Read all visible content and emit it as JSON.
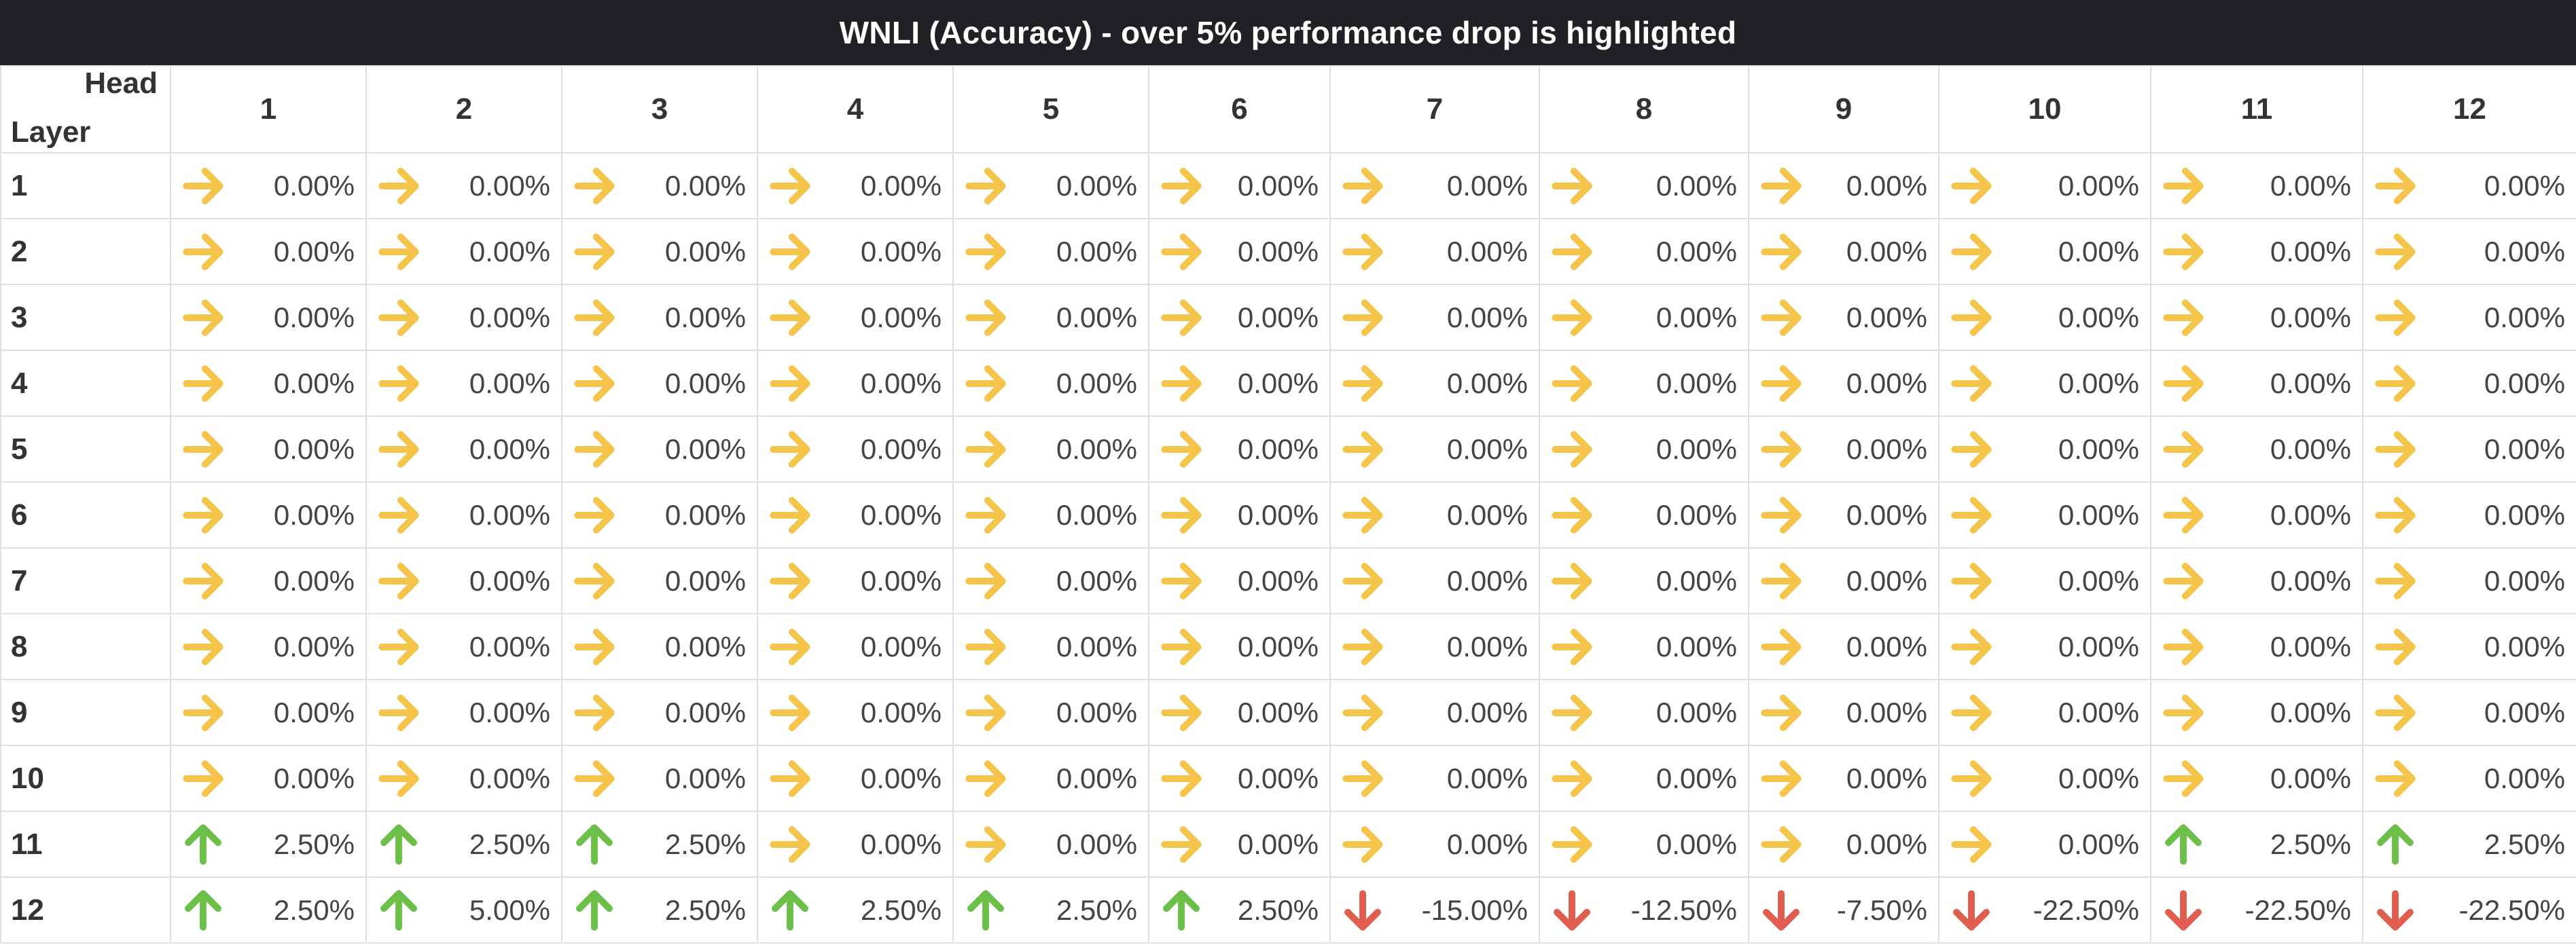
{
  "title": "WNLI (Accuracy) - over 5% performance drop is highlighted",
  "corner": {
    "head_label": "Head",
    "layer_label": "Layer"
  },
  "heads": [
    "1",
    "2",
    "3",
    "4",
    "5",
    "6",
    "7",
    "8",
    "9",
    "10",
    "11",
    "12"
  ],
  "colors": {
    "up": "#6cc04a",
    "flat": "#f5c54b",
    "down": "#e05d50"
  },
  "icons": {
    "up": "arrow-up-icon",
    "flat": "arrow-right-icon",
    "down": "arrow-down-icon"
  },
  "rows": [
    {
      "layer": "1",
      "cells": [
        {
          "value": "0.00%",
          "trend": "flat"
        },
        {
          "value": "0.00%",
          "trend": "flat"
        },
        {
          "value": "0.00%",
          "trend": "flat"
        },
        {
          "value": "0.00%",
          "trend": "flat"
        },
        {
          "value": "0.00%",
          "trend": "flat"
        },
        {
          "value": "0.00%",
          "trend": "flat"
        },
        {
          "value": "0.00%",
          "trend": "flat"
        },
        {
          "value": "0.00%",
          "trend": "flat"
        },
        {
          "value": "0.00%",
          "trend": "flat"
        },
        {
          "value": "0.00%",
          "trend": "flat"
        },
        {
          "value": "0.00%",
          "trend": "flat"
        },
        {
          "value": "0.00%",
          "trend": "flat"
        }
      ]
    },
    {
      "layer": "2",
      "cells": [
        {
          "value": "0.00%",
          "trend": "flat"
        },
        {
          "value": "0.00%",
          "trend": "flat"
        },
        {
          "value": "0.00%",
          "trend": "flat"
        },
        {
          "value": "0.00%",
          "trend": "flat"
        },
        {
          "value": "0.00%",
          "trend": "flat"
        },
        {
          "value": "0.00%",
          "trend": "flat"
        },
        {
          "value": "0.00%",
          "trend": "flat"
        },
        {
          "value": "0.00%",
          "trend": "flat"
        },
        {
          "value": "0.00%",
          "trend": "flat"
        },
        {
          "value": "0.00%",
          "trend": "flat"
        },
        {
          "value": "0.00%",
          "trend": "flat"
        },
        {
          "value": "0.00%",
          "trend": "flat"
        }
      ]
    },
    {
      "layer": "3",
      "cells": [
        {
          "value": "0.00%",
          "trend": "flat"
        },
        {
          "value": "0.00%",
          "trend": "flat"
        },
        {
          "value": "0.00%",
          "trend": "flat"
        },
        {
          "value": "0.00%",
          "trend": "flat"
        },
        {
          "value": "0.00%",
          "trend": "flat"
        },
        {
          "value": "0.00%",
          "trend": "flat"
        },
        {
          "value": "0.00%",
          "trend": "flat"
        },
        {
          "value": "0.00%",
          "trend": "flat"
        },
        {
          "value": "0.00%",
          "trend": "flat"
        },
        {
          "value": "0.00%",
          "trend": "flat"
        },
        {
          "value": "0.00%",
          "trend": "flat"
        },
        {
          "value": "0.00%",
          "trend": "flat"
        }
      ]
    },
    {
      "layer": "4",
      "cells": [
        {
          "value": "0.00%",
          "trend": "flat"
        },
        {
          "value": "0.00%",
          "trend": "flat"
        },
        {
          "value": "0.00%",
          "trend": "flat"
        },
        {
          "value": "0.00%",
          "trend": "flat"
        },
        {
          "value": "0.00%",
          "trend": "flat"
        },
        {
          "value": "0.00%",
          "trend": "flat"
        },
        {
          "value": "0.00%",
          "trend": "flat"
        },
        {
          "value": "0.00%",
          "trend": "flat"
        },
        {
          "value": "0.00%",
          "trend": "flat"
        },
        {
          "value": "0.00%",
          "trend": "flat"
        },
        {
          "value": "0.00%",
          "trend": "flat"
        },
        {
          "value": "0.00%",
          "trend": "flat"
        }
      ]
    },
    {
      "layer": "5",
      "cells": [
        {
          "value": "0.00%",
          "trend": "flat"
        },
        {
          "value": "0.00%",
          "trend": "flat"
        },
        {
          "value": "0.00%",
          "trend": "flat"
        },
        {
          "value": "0.00%",
          "trend": "flat"
        },
        {
          "value": "0.00%",
          "trend": "flat"
        },
        {
          "value": "0.00%",
          "trend": "flat"
        },
        {
          "value": "0.00%",
          "trend": "flat"
        },
        {
          "value": "0.00%",
          "trend": "flat"
        },
        {
          "value": "0.00%",
          "trend": "flat"
        },
        {
          "value": "0.00%",
          "trend": "flat"
        },
        {
          "value": "0.00%",
          "trend": "flat"
        },
        {
          "value": "0.00%",
          "trend": "flat"
        }
      ]
    },
    {
      "layer": "6",
      "cells": [
        {
          "value": "0.00%",
          "trend": "flat"
        },
        {
          "value": "0.00%",
          "trend": "flat"
        },
        {
          "value": "0.00%",
          "trend": "flat"
        },
        {
          "value": "0.00%",
          "trend": "flat"
        },
        {
          "value": "0.00%",
          "trend": "flat"
        },
        {
          "value": "0.00%",
          "trend": "flat"
        },
        {
          "value": "0.00%",
          "trend": "flat"
        },
        {
          "value": "0.00%",
          "trend": "flat"
        },
        {
          "value": "0.00%",
          "trend": "flat"
        },
        {
          "value": "0.00%",
          "trend": "flat"
        },
        {
          "value": "0.00%",
          "trend": "flat"
        },
        {
          "value": "0.00%",
          "trend": "flat"
        }
      ]
    },
    {
      "layer": "7",
      "cells": [
        {
          "value": "0.00%",
          "trend": "flat"
        },
        {
          "value": "0.00%",
          "trend": "flat"
        },
        {
          "value": "0.00%",
          "trend": "flat"
        },
        {
          "value": "0.00%",
          "trend": "flat"
        },
        {
          "value": "0.00%",
          "trend": "flat"
        },
        {
          "value": "0.00%",
          "trend": "flat"
        },
        {
          "value": "0.00%",
          "trend": "flat"
        },
        {
          "value": "0.00%",
          "trend": "flat"
        },
        {
          "value": "0.00%",
          "trend": "flat"
        },
        {
          "value": "0.00%",
          "trend": "flat"
        },
        {
          "value": "0.00%",
          "trend": "flat"
        },
        {
          "value": "0.00%",
          "trend": "flat"
        }
      ]
    },
    {
      "layer": "8",
      "cells": [
        {
          "value": "0.00%",
          "trend": "flat"
        },
        {
          "value": "0.00%",
          "trend": "flat"
        },
        {
          "value": "0.00%",
          "trend": "flat"
        },
        {
          "value": "0.00%",
          "trend": "flat"
        },
        {
          "value": "0.00%",
          "trend": "flat"
        },
        {
          "value": "0.00%",
          "trend": "flat"
        },
        {
          "value": "0.00%",
          "trend": "flat"
        },
        {
          "value": "0.00%",
          "trend": "flat"
        },
        {
          "value": "0.00%",
          "trend": "flat"
        },
        {
          "value": "0.00%",
          "trend": "flat"
        },
        {
          "value": "0.00%",
          "trend": "flat"
        },
        {
          "value": "0.00%",
          "trend": "flat"
        }
      ]
    },
    {
      "layer": "9",
      "cells": [
        {
          "value": "0.00%",
          "trend": "flat"
        },
        {
          "value": "0.00%",
          "trend": "flat"
        },
        {
          "value": "0.00%",
          "trend": "flat"
        },
        {
          "value": "0.00%",
          "trend": "flat"
        },
        {
          "value": "0.00%",
          "trend": "flat"
        },
        {
          "value": "0.00%",
          "trend": "flat"
        },
        {
          "value": "0.00%",
          "trend": "flat"
        },
        {
          "value": "0.00%",
          "trend": "flat"
        },
        {
          "value": "0.00%",
          "trend": "flat"
        },
        {
          "value": "0.00%",
          "trend": "flat"
        },
        {
          "value": "0.00%",
          "trend": "flat"
        },
        {
          "value": "0.00%",
          "trend": "flat"
        }
      ]
    },
    {
      "layer": "10",
      "cells": [
        {
          "value": "0.00%",
          "trend": "flat"
        },
        {
          "value": "0.00%",
          "trend": "flat"
        },
        {
          "value": "0.00%",
          "trend": "flat"
        },
        {
          "value": "0.00%",
          "trend": "flat"
        },
        {
          "value": "0.00%",
          "trend": "flat"
        },
        {
          "value": "0.00%",
          "trend": "flat"
        },
        {
          "value": "0.00%",
          "trend": "flat"
        },
        {
          "value": "0.00%",
          "trend": "flat"
        },
        {
          "value": "0.00%",
          "trend": "flat"
        },
        {
          "value": "0.00%",
          "trend": "flat"
        },
        {
          "value": "0.00%",
          "trend": "flat"
        },
        {
          "value": "0.00%",
          "trend": "flat"
        }
      ]
    },
    {
      "layer": "11",
      "cells": [
        {
          "value": "2.50%",
          "trend": "up"
        },
        {
          "value": "2.50%",
          "trend": "up"
        },
        {
          "value": "2.50%",
          "trend": "up"
        },
        {
          "value": "0.00%",
          "trend": "flat"
        },
        {
          "value": "0.00%",
          "trend": "flat"
        },
        {
          "value": "0.00%",
          "trend": "flat"
        },
        {
          "value": "0.00%",
          "trend": "flat"
        },
        {
          "value": "0.00%",
          "trend": "flat"
        },
        {
          "value": "0.00%",
          "trend": "flat"
        },
        {
          "value": "0.00%",
          "trend": "flat"
        },
        {
          "value": "2.50%",
          "trend": "up"
        },
        {
          "value": "2.50%",
          "trend": "up"
        }
      ]
    },
    {
      "layer": "12",
      "cells": [
        {
          "value": "2.50%",
          "trend": "up"
        },
        {
          "value": "5.00%",
          "trend": "up"
        },
        {
          "value": "2.50%",
          "trend": "up"
        },
        {
          "value": "2.50%",
          "trend": "up"
        },
        {
          "value": "2.50%",
          "trend": "up"
        },
        {
          "value": "2.50%",
          "trend": "up"
        },
        {
          "value": "-15.00%",
          "trend": "down"
        },
        {
          "value": "-12.50%",
          "trend": "down"
        },
        {
          "value": "-7.50%",
          "trend": "down"
        },
        {
          "value": "-22.50%",
          "trend": "down"
        },
        {
          "value": "-22.50%",
          "trend": "down"
        },
        {
          "value": "-22.50%",
          "trend": "down"
        }
      ]
    }
  ]
}
